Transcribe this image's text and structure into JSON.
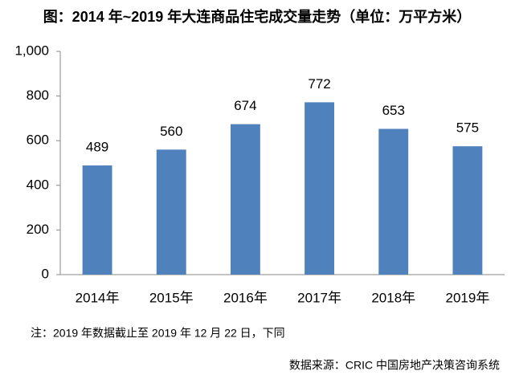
{
  "chart_data": {
    "type": "bar",
    "title": "图：2014 年~2019 年大连商品住宅成交量走势（单位：万平方米）",
    "categories": [
      "2014年",
      "2015年",
      "2016年",
      "2017年",
      "2018年",
      "2019年"
    ],
    "values": [
      489,
      560,
      674,
      772,
      653,
      575
    ],
    "color": "#4f81bd",
    "ylim": [
      0,
      1000
    ],
    "yticks": [
      0,
      200,
      400,
      600,
      800,
      {
        "value": 1000,
        "label": "1,000"
      }
    ],
    "grid": false,
    "note": "注：2019 年数据截止至 2019 年 12 月 22 日，下同",
    "source": "数据来源：CRIC 中国房地产决策咨询系统"
  }
}
